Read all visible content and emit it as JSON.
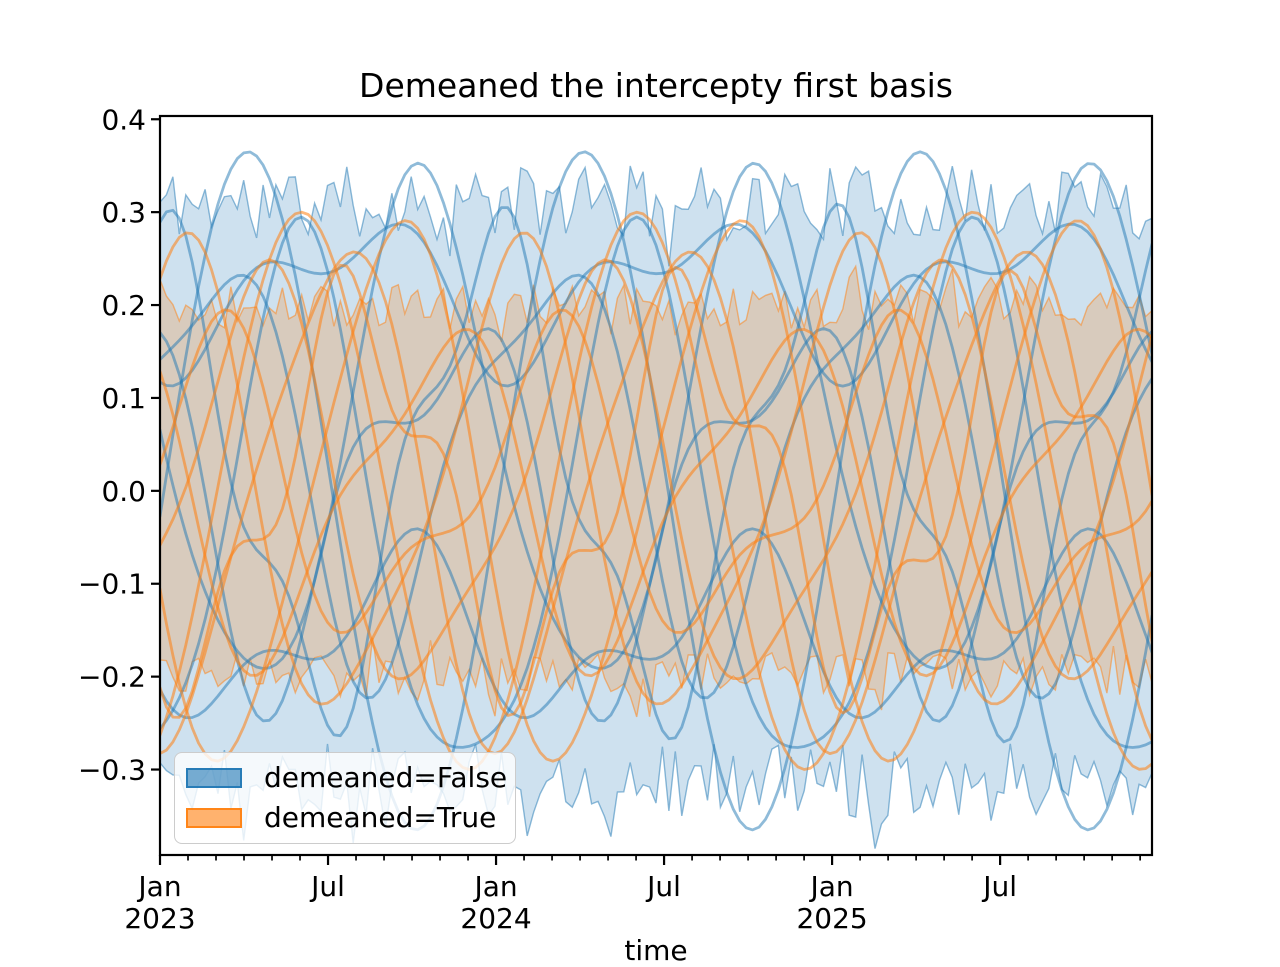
{
  "chart_data": {
    "type": "line",
    "title": "Demeaned the intercepty first basis",
    "xlabel": "time",
    "grid": false,
    "background": "#ffffff",
    "legend_position": "lower left",
    "legend": [
      {
        "label": "demeaned=False",
        "color": "#1f77b4"
      },
      {
        "label": "demeaned=True",
        "color": "#ff7f0e"
      }
    ],
    "x_axis": {
      "start": "2023-01",
      "months_total": 36,
      "domain_end_years": 2.952,
      "major_tick_every_months": 6,
      "major_ticks": [
        {
          "month_index": 0,
          "line1": "Jan",
          "line2": "2023"
        },
        {
          "month_index": 6,
          "line1": "Jul",
          "line2": ""
        },
        {
          "month_index": 12,
          "line1": "Jan",
          "line2": "2024"
        },
        {
          "month_index": 18,
          "line1": "Jul",
          "line2": ""
        },
        {
          "month_index": 24,
          "line1": "Jan",
          "line2": "2025"
        },
        {
          "month_index": 30,
          "line1": "Jul",
          "line2": ""
        }
      ]
    },
    "y_axis": {
      "range": [
        -0.392,
        0.4035
      ],
      "ticks": [
        {
          "value": 0.4,
          "label": "0.4"
        },
        {
          "value": 0.3,
          "label": "0.3"
        },
        {
          "value": 0.2,
          "label": "0.2"
        },
        {
          "value": 0.1,
          "label": "0.1"
        },
        {
          "value": 0.0,
          "label": "0.0"
        },
        {
          "value": -0.1,
          "label": "−0.1"
        },
        {
          "value": -0.2,
          "label": "−0.2"
        },
        {
          "value": -0.3,
          "label": "−0.3"
        }
      ]
    },
    "noise_seed": 11,
    "series": [
      {
        "name": "demeaned=False",
        "color": "#1f77b4",
        "band_alpha": 0.22,
        "line_alpha": 0.5,
        "band": {
          "upper_mean": 0.31,
          "lower_mean": -0.31,
          "noise_amp": 0.04,
          "n_points": 155
        },
        "lines": [
          {
            "offset": 0,
            "components": [
              [
                0.365,
                1,
                0.012
              ]
            ]
          },
          {
            "offset": 0.05,
            "components": [
              [
                0.27,
                1,
                0.53
              ],
              [
                0.035,
                0.5,
                0.12
              ]
            ]
          },
          {
            "offset": 0.215,
            "components": [
              [
                0.065,
                1,
                0.32
              ],
              [
                0.04,
                0.5,
                0.64
              ]
            ]
          },
          {
            "offset": -0.04,
            "components": [
              [
                0.285,
                1,
                0.165
              ],
              [
                0.05,
                0.5,
                0.8
              ]
            ]
          },
          {
            "offset": 0.02,
            "components": [
              [
                0.24,
                1,
                0.74
              ],
              [
                0.055,
                0.33,
                0.3
              ]
            ]
          },
          {
            "offset": -0.155,
            "components": [
              [
                0.075,
                1,
                0.46
              ],
              [
                0.045,
                0.5,
                0.16
              ]
            ]
          },
          {
            "offset": 0,
            "components": [
              [
                0.175,
                1,
                0.6
              ],
              [
                0.08,
                0.5,
                0.42
              ]
            ]
          },
          {
            "offset": 0.04,
            "components": [
              [
                0.21,
                1,
                0.9
              ],
              [
                0.06,
                0.5,
                0.22
              ]
            ]
          }
        ]
      },
      {
        "name": "demeaned=True",
        "color": "#ff7f0e",
        "band_alpha": 0.22,
        "line_alpha": 0.55,
        "band": {
          "upper_mean": 0.198,
          "lower_mean": -0.198,
          "noise_amp": 0.024,
          "n_points": 155
        },
        "lines": [
          {
            "offset": 0,
            "components": [
              [
                0.3,
                1,
                0.17
              ]
            ]
          },
          {
            "offset": 0,
            "components": [
              [
                0.285,
                1,
                0.45
              ],
              [
                0.03,
                0.5,
                0.2
              ]
            ]
          },
          {
            "offset": 0,
            "components": [
              [
                0.24,
                1,
                0.8
              ],
              [
                0.05,
                0.5,
                0.5
              ]
            ]
          },
          {
            "offset": 0,
            "components": [
              [
                0.21,
                1,
                0.04
              ],
              [
                0.05,
                0.5,
                0.74
              ]
            ]
          },
          {
            "offset": 0,
            "components": [
              [
                0.19,
                1,
                0.33
              ],
              [
                0.06,
                0.33,
                0.12
              ]
            ]
          },
          {
            "offset": 0,
            "components": [
              [
                0.165,
                1,
                0.58
              ],
              [
                0.05,
                0.5,
                0.36
              ]
            ]
          },
          {
            "offset": 0,
            "components": [
              [
                0.145,
                1,
                0.9
              ],
              [
                0.06,
                0.5,
                0.6
              ]
            ]
          },
          {
            "offset": 0,
            "components": [
              [
                0.26,
                1,
                0.28
              ],
              [
                0.04,
                0.5,
                0.06
              ]
            ]
          }
        ]
      }
    ]
  }
}
